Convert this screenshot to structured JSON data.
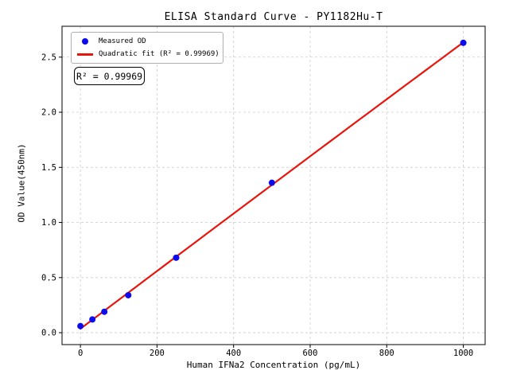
{
  "chart_data": {
    "type": "scatter",
    "title": "ELISA Standard Curve - PY1182Hu-T",
    "xlabel": "Human IFNa2 Concentration (pg/mL)",
    "ylabel": "OD Value(450nm)",
    "annotation": "R² = 0.99969",
    "x_ticks": [
      0,
      200,
      400,
      600,
      800,
      1000
    ],
    "y_ticks": [
      0.0,
      0.5,
      1.0,
      1.5,
      2.0,
      2.5
    ],
    "xlim": [
      -48,
      1057
    ],
    "ylim": [
      -0.108,
      2.78
    ],
    "grid": true,
    "grid_style": "dashed",
    "legend_position": "upper left",
    "series": [
      {
        "name": "Measured OD",
        "type": "scatter",
        "color": "#0b0bee",
        "x": [
          0,
          31.25,
          62.5,
          125,
          250,
          500,
          1000
        ],
        "y": [
          0.06,
          0.12,
          0.19,
          0.34,
          0.68,
          1.36,
          2.63
        ]
      },
      {
        "name": "Quadratic fit (R² = 0.99969)",
        "type": "line",
        "fit": "quadratic",
        "color": "#e8150d",
        "x_range": [
          0,
          1000
        ]
      }
    ],
    "colors": {
      "grid": "#cccccc",
      "axis": "#000000",
      "background": "#ffffff"
    }
  }
}
